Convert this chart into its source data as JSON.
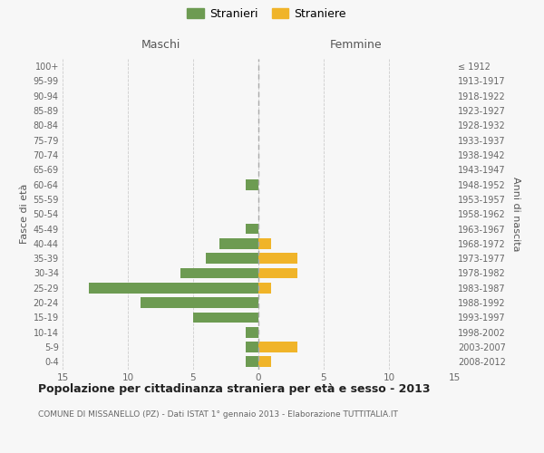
{
  "age_groups": [
    "0-4",
    "5-9",
    "10-14",
    "15-19",
    "20-24",
    "25-29",
    "30-34",
    "35-39",
    "40-44",
    "45-49",
    "50-54",
    "55-59",
    "60-64",
    "65-69",
    "70-74",
    "75-79",
    "80-84",
    "85-89",
    "90-94",
    "95-99",
    "100+"
  ],
  "birth_years": [
    "2008-2012",
    "2003-2007",
    "1998-2002",
    "1993-1997",
    "1988-1992",
    "1983-1987",
    "1978-1982",
    "1973-1977",
    "1968-1972",
    "1963-1967",
    "1958-1962",
    "1953-1957",
    "1948-1952",
    "1943-1947",
    "1938-1942",
    "1933-1937",
    "1928-1932",
    "1923-1927",
    "1918-1922",
    "1913-1917",
    "≤ 1912"
  ],
  "maschi": [
    1,
    1,
    1,
    5,
    9,
    13,
    6,
    4,
    3,
    1,
    0,
    0,
    1,
    0,
    0,
    0,
    0,
    0,
    0,
    0,
    0
  ],
  "femmine": [
    1,
    3,
    0,
    0,
    0,
    1,
    3,
    3,
    1,
    0,
    0,
    0,
    0,
    0,
    0,
    0,
    0,
    0,
    0,
    0,
    0
  ],
  "maschi_color": "#6d9b52",
  "femmine_color": "#f0b429",
  "title": "Popolazione per cittadinanza straniera per età e sesso - 2013",
  "subtitle": "COMUNE DI MISSANELLO (PZ) - Dati ISTAT 1° gennaio 2013 - Elaborazione TUTTITALIA.IT",
  "left_label": "Maschi",
  "right_label": "Femmine",
  "yleft_label": "Fasce di età",
  "yright_label": "Anni di nascita",
  "legend_maschi": "Stranieri",
  "legend_femmine": "Straniere",
  "xlim": 15,
  "background_color": "#f7f7f7",
  "grid_color": "#cccccc"
}
